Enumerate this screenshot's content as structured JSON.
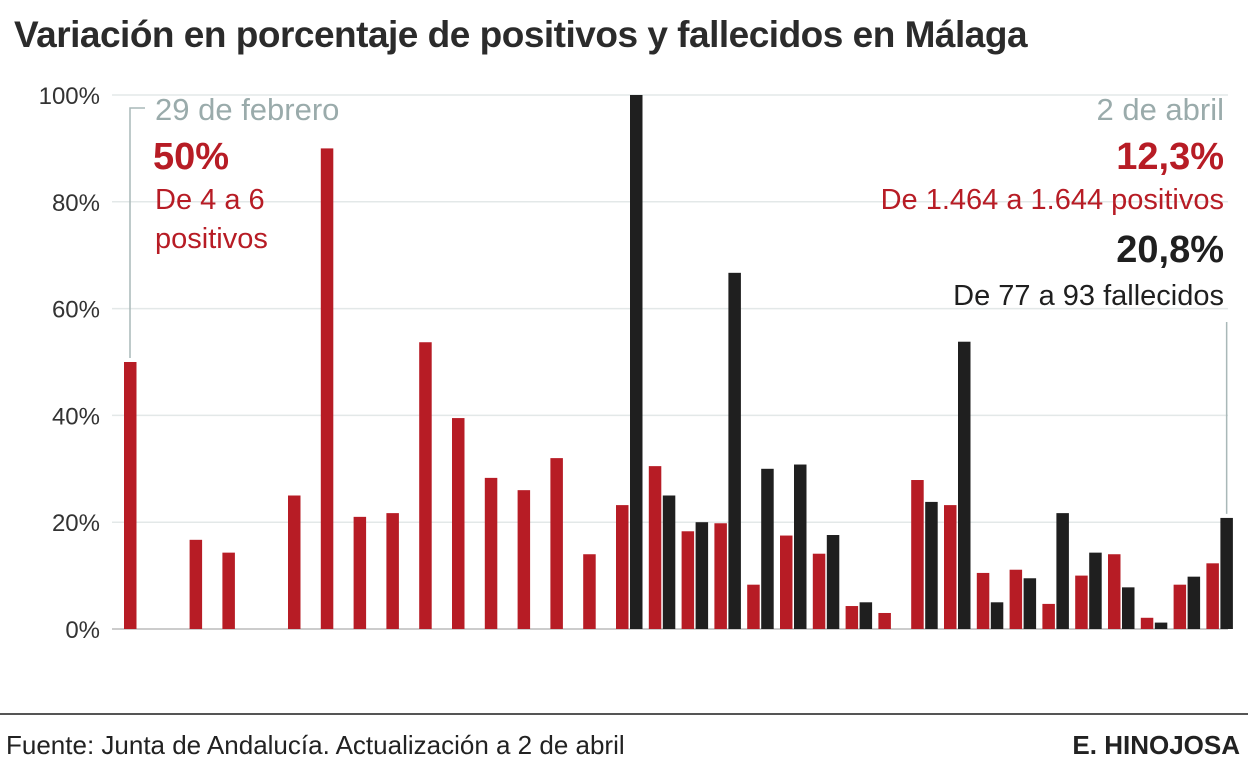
{
  "chart_data": {
    "type": "bar",
    "title": "Variación en porcentaje de positivos y fallecidos en Málaga",
    "xlabel": "",
    "ylabel": "",
    "ylim": [
      0,
      100
    ],
    "yticks": [
      "0%",
      "20%",
      "40%",
      "60%",
      "80%",
      "100%"
    ],
    "ytick_values": [
      0,
      20,
      40,
      60,
      80,
      100
    ],
    "grid": true,
    "series": [
      {
        "name": "Positivos",
        "color": "#b71c25",
        "values": [
          50,
          null,
          16.7,
          14.3,
          null,
          25,
          90,
          21,
          21.7,
          53.7,
          39.5,
          28.3,
          26,
          32,
          14,
          23.2,
          30.5,
          18.3,
          19.8,
          8.3,
          17.5,
          14.1,
          4.3,
          3,
          27.9,
          23.2,
          10.5,
          11.1,
          4.7,
          10,
          14,
          2.1,
          8.3,
          12.3
        ]
      },
      {
        "name": "Fallecidos",
        "color": "#1f1f1f",
        "values": [
          null,
          null,
          null,
          null,
          null,
          null,
          null,
          null,
          null,
          null,
          null,
          null,
          null,
          null,
          null,
          100,
          25,
          20,
          66.7,
          30,
          30.8,
          17.6,
          5,
          null,
          23.8,
          53.8,
          5,
          9.5,
          21.7,
          14.3,
          7.8,
          1.2,
          9.8,
          20.8
        ]
      }
    ],
    "annotations": {
      "left": {
        "date": "29 de febrero",
        "value": "50%",
        "line1": "De 4 a 6",
        "line2": "positivos"
      },
      "right": {
        "date": "2 de abril",
        "pos_value": "12,3%",
        "pos_text": "De 1.464 a 1.644 positivos",
        "deaths_value": "20,8%",
        "deaths_text": "De 77 a 93 fallecidos"
      }
    }
  },
  "source": "Fuente: Junta de Andalucía. Actualización a 2 de abril",
  "credit": "E. HINOJOSA"
}
